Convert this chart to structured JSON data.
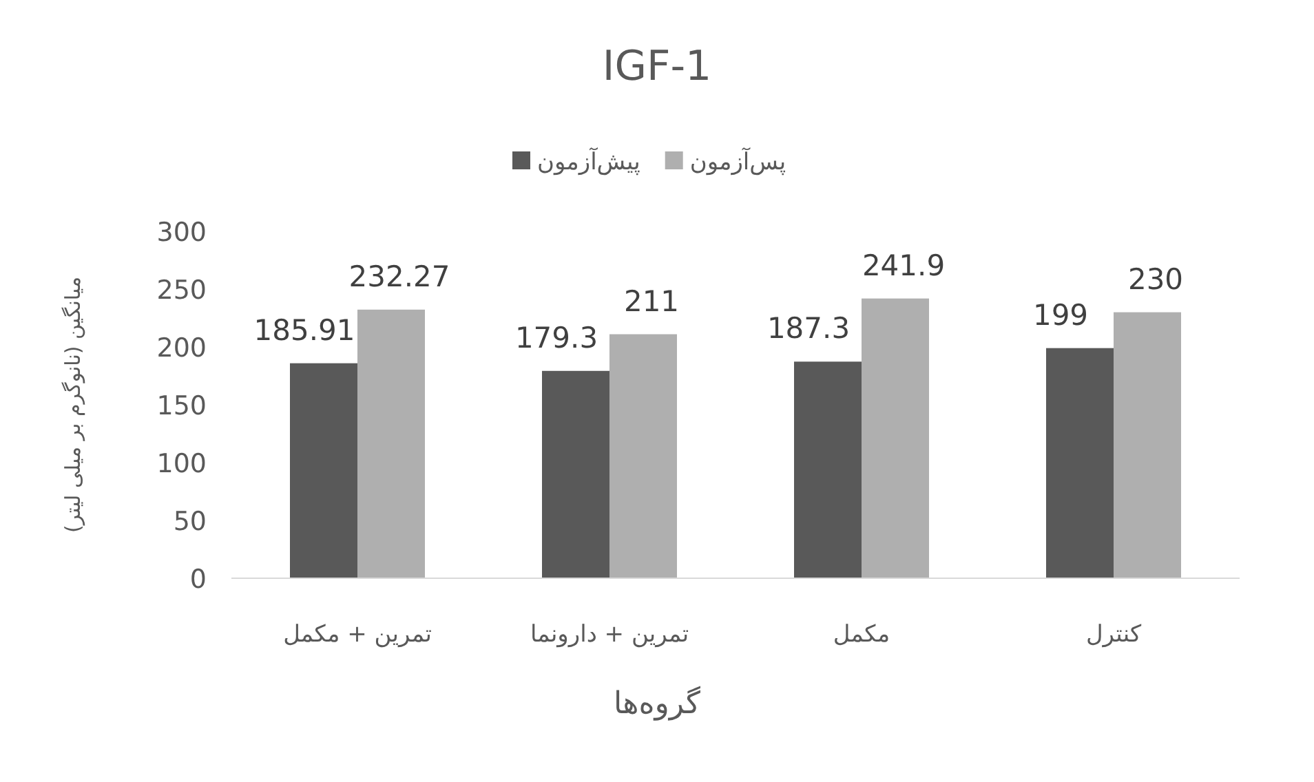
{
  "chart_data": {
    "type": "bar",
    "title": "IGF-1",
    "xlabel": "گروه‌ها",
    "ylabel": "میانگین (نانوگرم بر میلی لیتر)",
    "categories": [
      "تمرین + مکمل",
      "تمرین + دارونما",
      "مکمل",
      "کنترل"
    ],
    "series": [
      {
        "name": "پیش‌آزمون",
        "color": "#595959",
        "values": [
          185.91,
          179.3,
          187.3,
          199
        ]
      },
      {
        "name": "پس‌آزمون",
        "color": "#afafaf",
        "values": [
          232.27,
          211,
          241.9,
          230
        ]
      }
    ],
    "ylim": [
      0,
      300
    ],
    "yticks": [
      0,
      50,
      100,
      150,
      200,
      250,
      300
    ],
    "data_labels": true,
    "legend": "top"
  }
}
